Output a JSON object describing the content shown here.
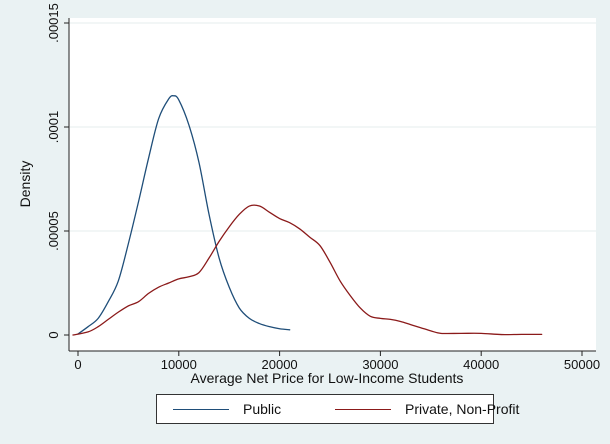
{
  "chart_data": {
    "type": "line",
    "title": "",
    "xlabel": "Average Net Price for Low-Income Students",
    "ylabel": "Density",
    "xlim": [
      -1000,
      51000
    ],
    "ylim": [
      0,
      0.00015
    ],
    "x_ticks": [
      0,
      10000,
      20000,
      30000,
      40000,
      50000
    ],
    "x_tick_labels": [
      "0",
      "10000",
      "20000",
      "30000",
      "40000",
      "50000"
    ],
    "y_ticks": [
      0,
      5e-05,
      0.0001,
      0.00015
    ],
    "y_tick_labels": [
      "0",
      ".00005",
      ".0001",
      ".00015"
    ],
    "grid": "horizontal",
    "legend_position": "bottom",
    "background_color": "#eaf2f3",
    "plot_background_color": "#ffffff",
    "series": [
      {
        "name": "Public",
        "color": "#1f4e79",
        "x": [
          0,
          1000,
          2000,
          3000,
          4000,
          5000,
          6000,
          7000,
          8000,
          9000,
          9500,
          10000,
          11000,
          12000,
          13000,
          14000,
          15000,
          16000,
          17000,
          18000,
          19000,
          20000,
          21000
        ],
        "y": [
          5e-07,
          4e-06,
          8e-06,
          1.6e-05,
          2.6e-05,
          4.4e-05,
          6.4e-05,
          8.5e-05,
          0.000104,
          0.0001135,
          0.000115,
          0.000113,
          0.000101,
          8.3e-05,
          5.8e-05,
          3.7e-05,
          2.3e-05,
          1.3e-05,
          8e-06,
          5.5e-06,
          4e-06,
          3e-06,
          2.5e-06
        ]
      },
      {
        "name": "Private, Non-Profit",
        "color": "#8b1a1a",
        "x": [
          -500,
          1000,
          2000,
          3000,
          4000,
          5000,
          6000,
          7000,
          8000,
          9000,
          10000,
          11000,
          12000,
          13000,
          14000,
          15000,
          16000,
          17000,
          18000,
          19000,
          20000,
          21000,
          22000,
          23000,
          24000,
          25000,
          26000,
          27000,
          28000,
          29000,
          30000,
          31000,
          32000,
          33000,
          34000,
          35000,
          36000,
          38000,
          40000,
          42000,
          44000,
          46000
        ],
        "y": [
          0,
          1.5e-06,
          4e-06,
          7.5e-06,
          1.1e-05,
          1.4e-05,
          1.6e-05,
          2e-05,
          2.3e-05,
          2.5e-05,
          2.7e-05,
          2.8e-05,
          3e-05,
          3.7e-05,
          4.5e-05,
          5.2e-05,
          5.8e-05,
          6.2e-05,
          6.2e-05,
          5.9e-05,
          5.6e-05,
          5.4e-05,
          5.1e-05,
          4.7e-05,
          4.3e-05,
          3.5e-05,
          2.6e-05,
          1.9e-05,
          1.3e-05,
          9e-06,
          8e-06,
          7.5e-06,
          6.5e-06,
          5e-06,
          3.5e-06,
          2e-06,
          8e-07,
          8e-07,
          8e-07,
          2e-07,
          3e-07,
          3e-07
        ]
      }
    ]
  }
}
